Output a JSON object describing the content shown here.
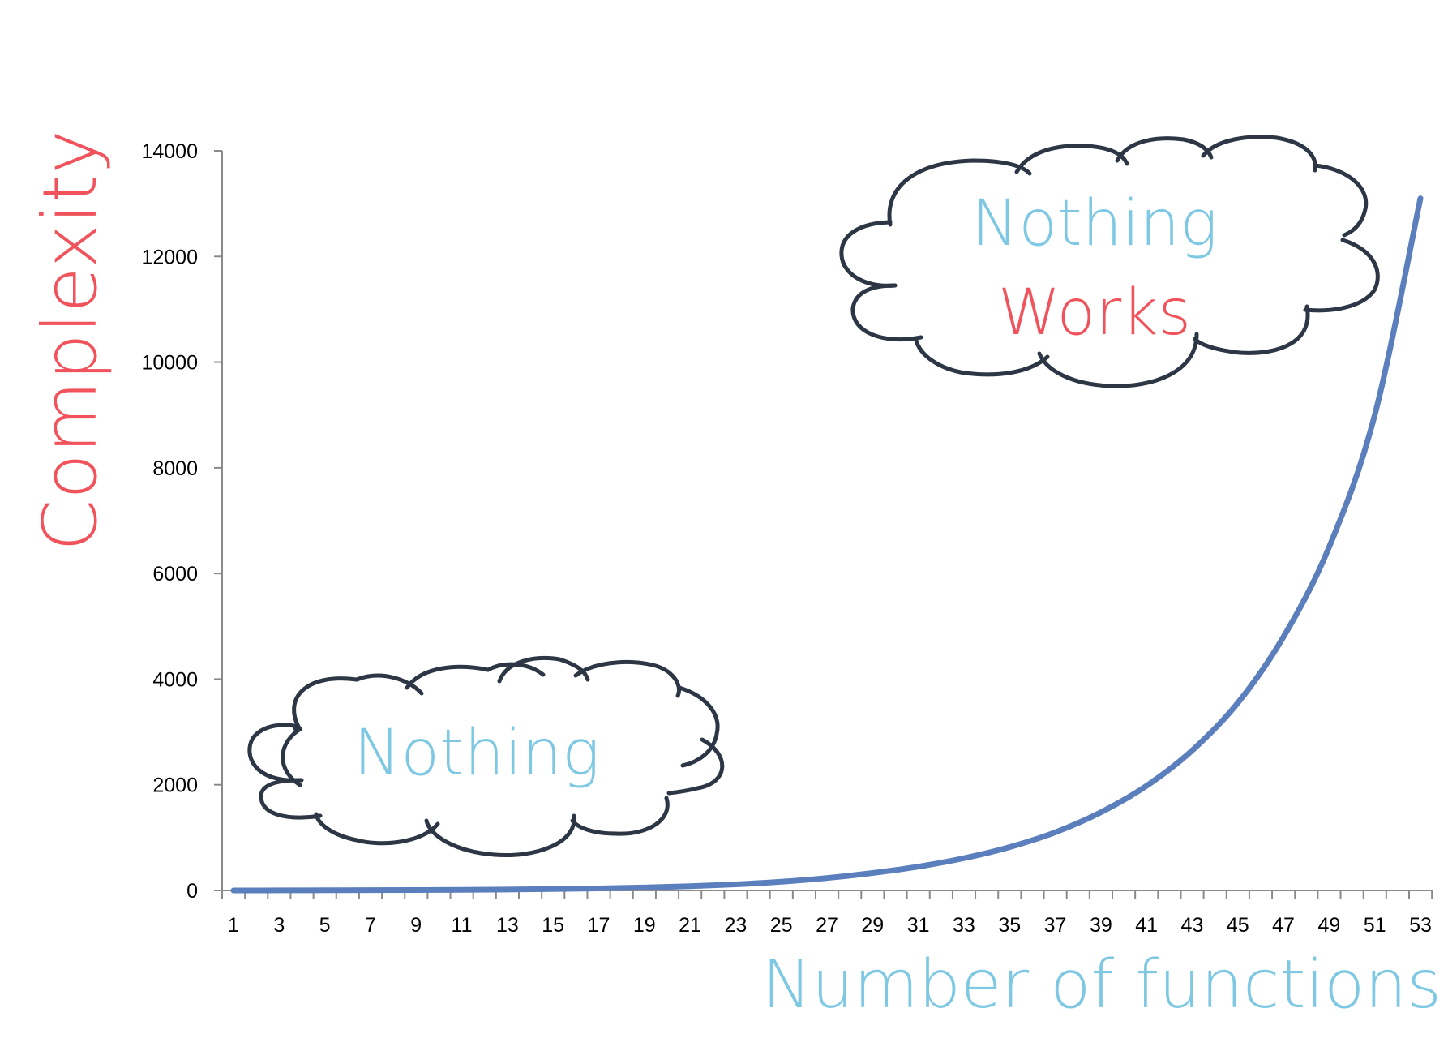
{
  "chart_data": {
    "type": "line",
    "title": "",
    "xlabel": "Number of functions",
    "ylabel": "Complexity",
    "x_tick_labels": [
      "1",
      "3",
      "5",
      "7",
      "9",
      "11",
      "13",
      "15",
      "17",
      "19",
      "21",
      "23",
      "25",
      "27",
      "29",
      "31",
      "33",
      "35",
      "37",
      "39",
      "41",
      "43",
      "45",
      "47",
      "49",
      "51",
      "53"
    ],
    "y_tick_labels": [
      "0",
      "2000",
      "4000",
      "6000",
      "8000",
      "10000",
      "12000",
      "14000"
    ],
    "ylim": [
      0,
      14000
    ],
    "xlim": [
      1,
      53
    ],
    "grid": false,
    "series": [
      {
        "color": "#5b7fbd",
        "x": [
          1,
          3,
          5,
          7,
          9,
          11,
          13,
          15,
          17,
          19,
          21,
          23,
          25,
          27,
          29,
          31,
          33,
          35,
          37,
          39,
          41,
          43,
          45,
          47,
          49,
          51,
          53
        ],
        "y": [
          0,
          1,
          3,
          5,
          8,
          12,
          18,
          26,
          38,
          55,
          80,
          115,
          165,
          235,
          330,
          450,
          610,
          820,
          1100,
          1480,
          1980,
          2650,
          3550,
          4800,
          6500,
          9000,
          13100
        ]
      }
    ],
    "annotations": [
      {
        "id": "low",
        "lines": [
          {
            "text": "Nothing",
            "color": "#7ec8e3"
          }
        ]
      },
      {
        "id": "high",
        "lines": [
          {
            "text": "Nothing",
            "color": "#7ec8e3"
          },
          {
            "text": "Works",
            "color": "#f0535b"
          }
        ]
      }
    ]
  },
  "colors": {
    "axis": "#8a8a8a",
    "xlabel": "#7ec8e3",
    "ylabel": "#f0535b",
    "cloud_stroke": "#2c3645"
  },
  "icons": [
    "cloud-low-icon",
    "cloud-high-icon"
  ]
}
